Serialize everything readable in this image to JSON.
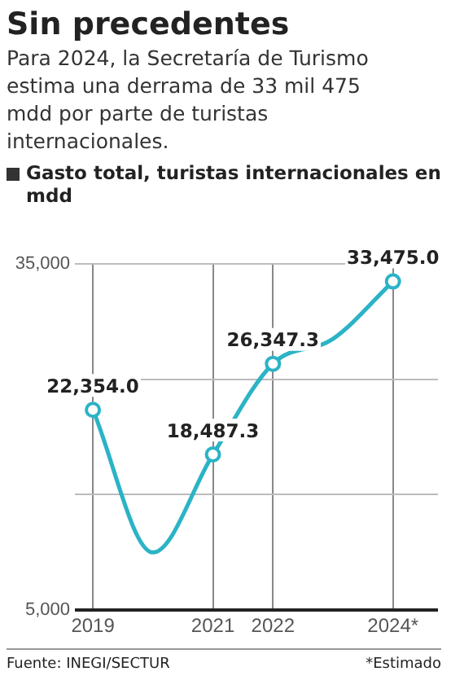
{
  "chart_data": {
    "type": "line",
    "title": "Sin precedentes",
    "subtitle": "Para 2024, la Secretaría de Turismo estima una derrama de 33 mil 475 mdd por parte de turistas internacionales.",
    "ylabel": "Gasto total, turistas internacionales en mdd",
    "x": [
      2019,
      2020,
      2021,
      2022,
      2023,
      2024
    ],
    "series": [
      {
        "color": "#2bb3c6",
        "values": [
          22354.0,
          10000,
          18487.3,
          26347.3,
          28500,
          33475.0
        ],
        "value_labels": [
          "22,354.0",
          null,
          "18,487.3",
          "26,347.3",
          null,
          "33,475.0"
        ]
      }
    ],
    "xlim": [
      2018.7,
      2024.75
    ],
    "xticks": [
      2019,
      2021,
      2022,
      {
        "value": 2024,
        "label": "2024*"
      }
    ],
    "ylim": [
      5000,
      35000
    ],
    "yticks": [
      {
        "value": 5000,
        "label": "5,000"
      },
      {
        "value": 15000,
        "label": null
      },
      {
        "value": 25000,
        "label": null
      },
      {
        "value": 35000,
        "label": "35,000"
      }
    ],
    "grid": true,
    "marker": "circle",
    "line_style": "solid",
    "annotations": [
      "Fuente: INEGI/SECTUR",
      "*Estimado"
    ]
  }
}
